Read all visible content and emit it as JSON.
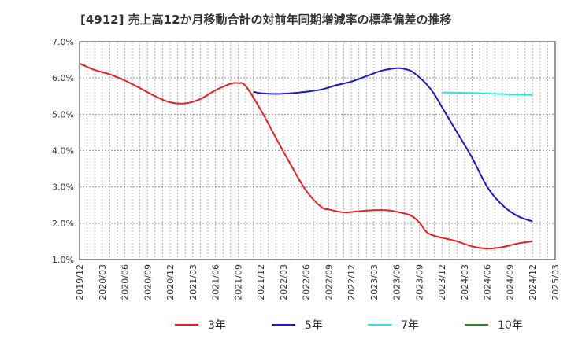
{
  "chart_data": {
    "type": "line",
    "title": "[4912]  売上高12か月移動合計の対前年同期増減率の標準偏差の推移",
    "x_ticks": [
      "2019/12",
      "2020/03",
      "2020/06",
      "2020/09",
      "2020/12",
      "2021/03",
      "2021/06",
      "2021/09",
      "2021/12",
      "2022/03",
      "2022/06",
      "2022/09",
      "2022/12",
      "2023/03",
      "2023/06",
      "2023/09",
      "2023/12",
      "2024/03",
      "2024/06",
      "2024/09",
      "2024/12",
      "2025/03"
    ],
    "y_ticks": [
      "1.0%",
      "2.0%",
      "3.0%",
      "4.0%",
      "5.0%",
      "6.0%",
      "7.0%"
    ],
    "ylim": [
      1.0,
      7.0
    ],
    "grid": true,
    "legend_position": "bottom",
    "series": [
      {
        "name": "3年",
        "color": "#e8201f",
        "x": [
          "2019/12",
          "2020/02",
          "2020/04",
          "2020/06",
          "2020/08",
          "2020/10",
          "2020/12",
          "2021/02",
          "2021/04",
          "2021/06",
          "2021/08",
          "2021/09",
          "2021/10",
          "2021/12",
          "2022/02",
          "2022/04",
          "2022/06",
          "2022/08",
          "2022/09",
          "2022/11",
          "2023/01",
          "2023/03",
          "2023/05",
          "2023/07",
          "2023/08",
          "2023/09",
          "2023/10",
          "2023/11",
          "2023/12",
          "2024/02",
          "2024/04",
          "2024/06",
          "2024/08",
          "2024/10",
          "2024/12"
        ],
        "values": [
          6.4,
          6.22,
          6.1,
          5.93,
          5.72,
          5.5,
          5.33,
          5.3,
          5.42,
          5.66,
          5.84,
          5.86,
          5.78,
          5.12,
          4.35,
          3.6,
          2.9,
          2.45,
          2.38,
          2.3,
          2.33,
          2.36,
          2.35,
          2.27,
          2.2,
          2.02,
          1.75,
          1.65,
          1.6,
          1.5,
          1.36,
          1.3,
          1.34,
          1.44,
          1.5
        ]
      },
      {
        "name": "5年",
        "color": "#1a1acc",
        "x": [
          "2021/11",
          "2021/12",
          "2022/02",
          "2022/04",
          "2022/06",
          "2022/08",
          "2022/10",
          "2022/12",
          "2023/02",
          "2023/04",
          "2023/06",
          "2023/07",
          "2023/08",
          "2023/09",
          "2023/10",
          "2023/11",
          "2023/12",
          "2024/02",
          "2024/04",
          "2024/06",
          "2024/08",
          "2024/10",
          "2024/12"
        ],
        "values": [
          5.62,
          5.58,
          5.56,
          5.58,
          5.62,
          5.68,
          5.8,
          5.9,
          6.05,
          6.2,
          6.27,
          6.25,
          6.18,
          6.02,
          5.82,
          5.55,
          5.2,
          4.5,
          3.8,
          3.0,
          2.5,
          2.2,
          2.05
        ]
      },
      {
        "name": "7年",
        "color": "#22e8ee",
        "x": [
          "2023/12",
          "2024/03",
          "2024/06",
          "2024/09",
          "2024/12"
        ],
        "values": [
          5.6,
          5.59,
          5.57,
          5.55,
          5.53
        ]
      },
      {
        "name": "10年",
        "color": "#1e8c1e",
        "x": [],
        "values": []
      }
    ]
  }
}
